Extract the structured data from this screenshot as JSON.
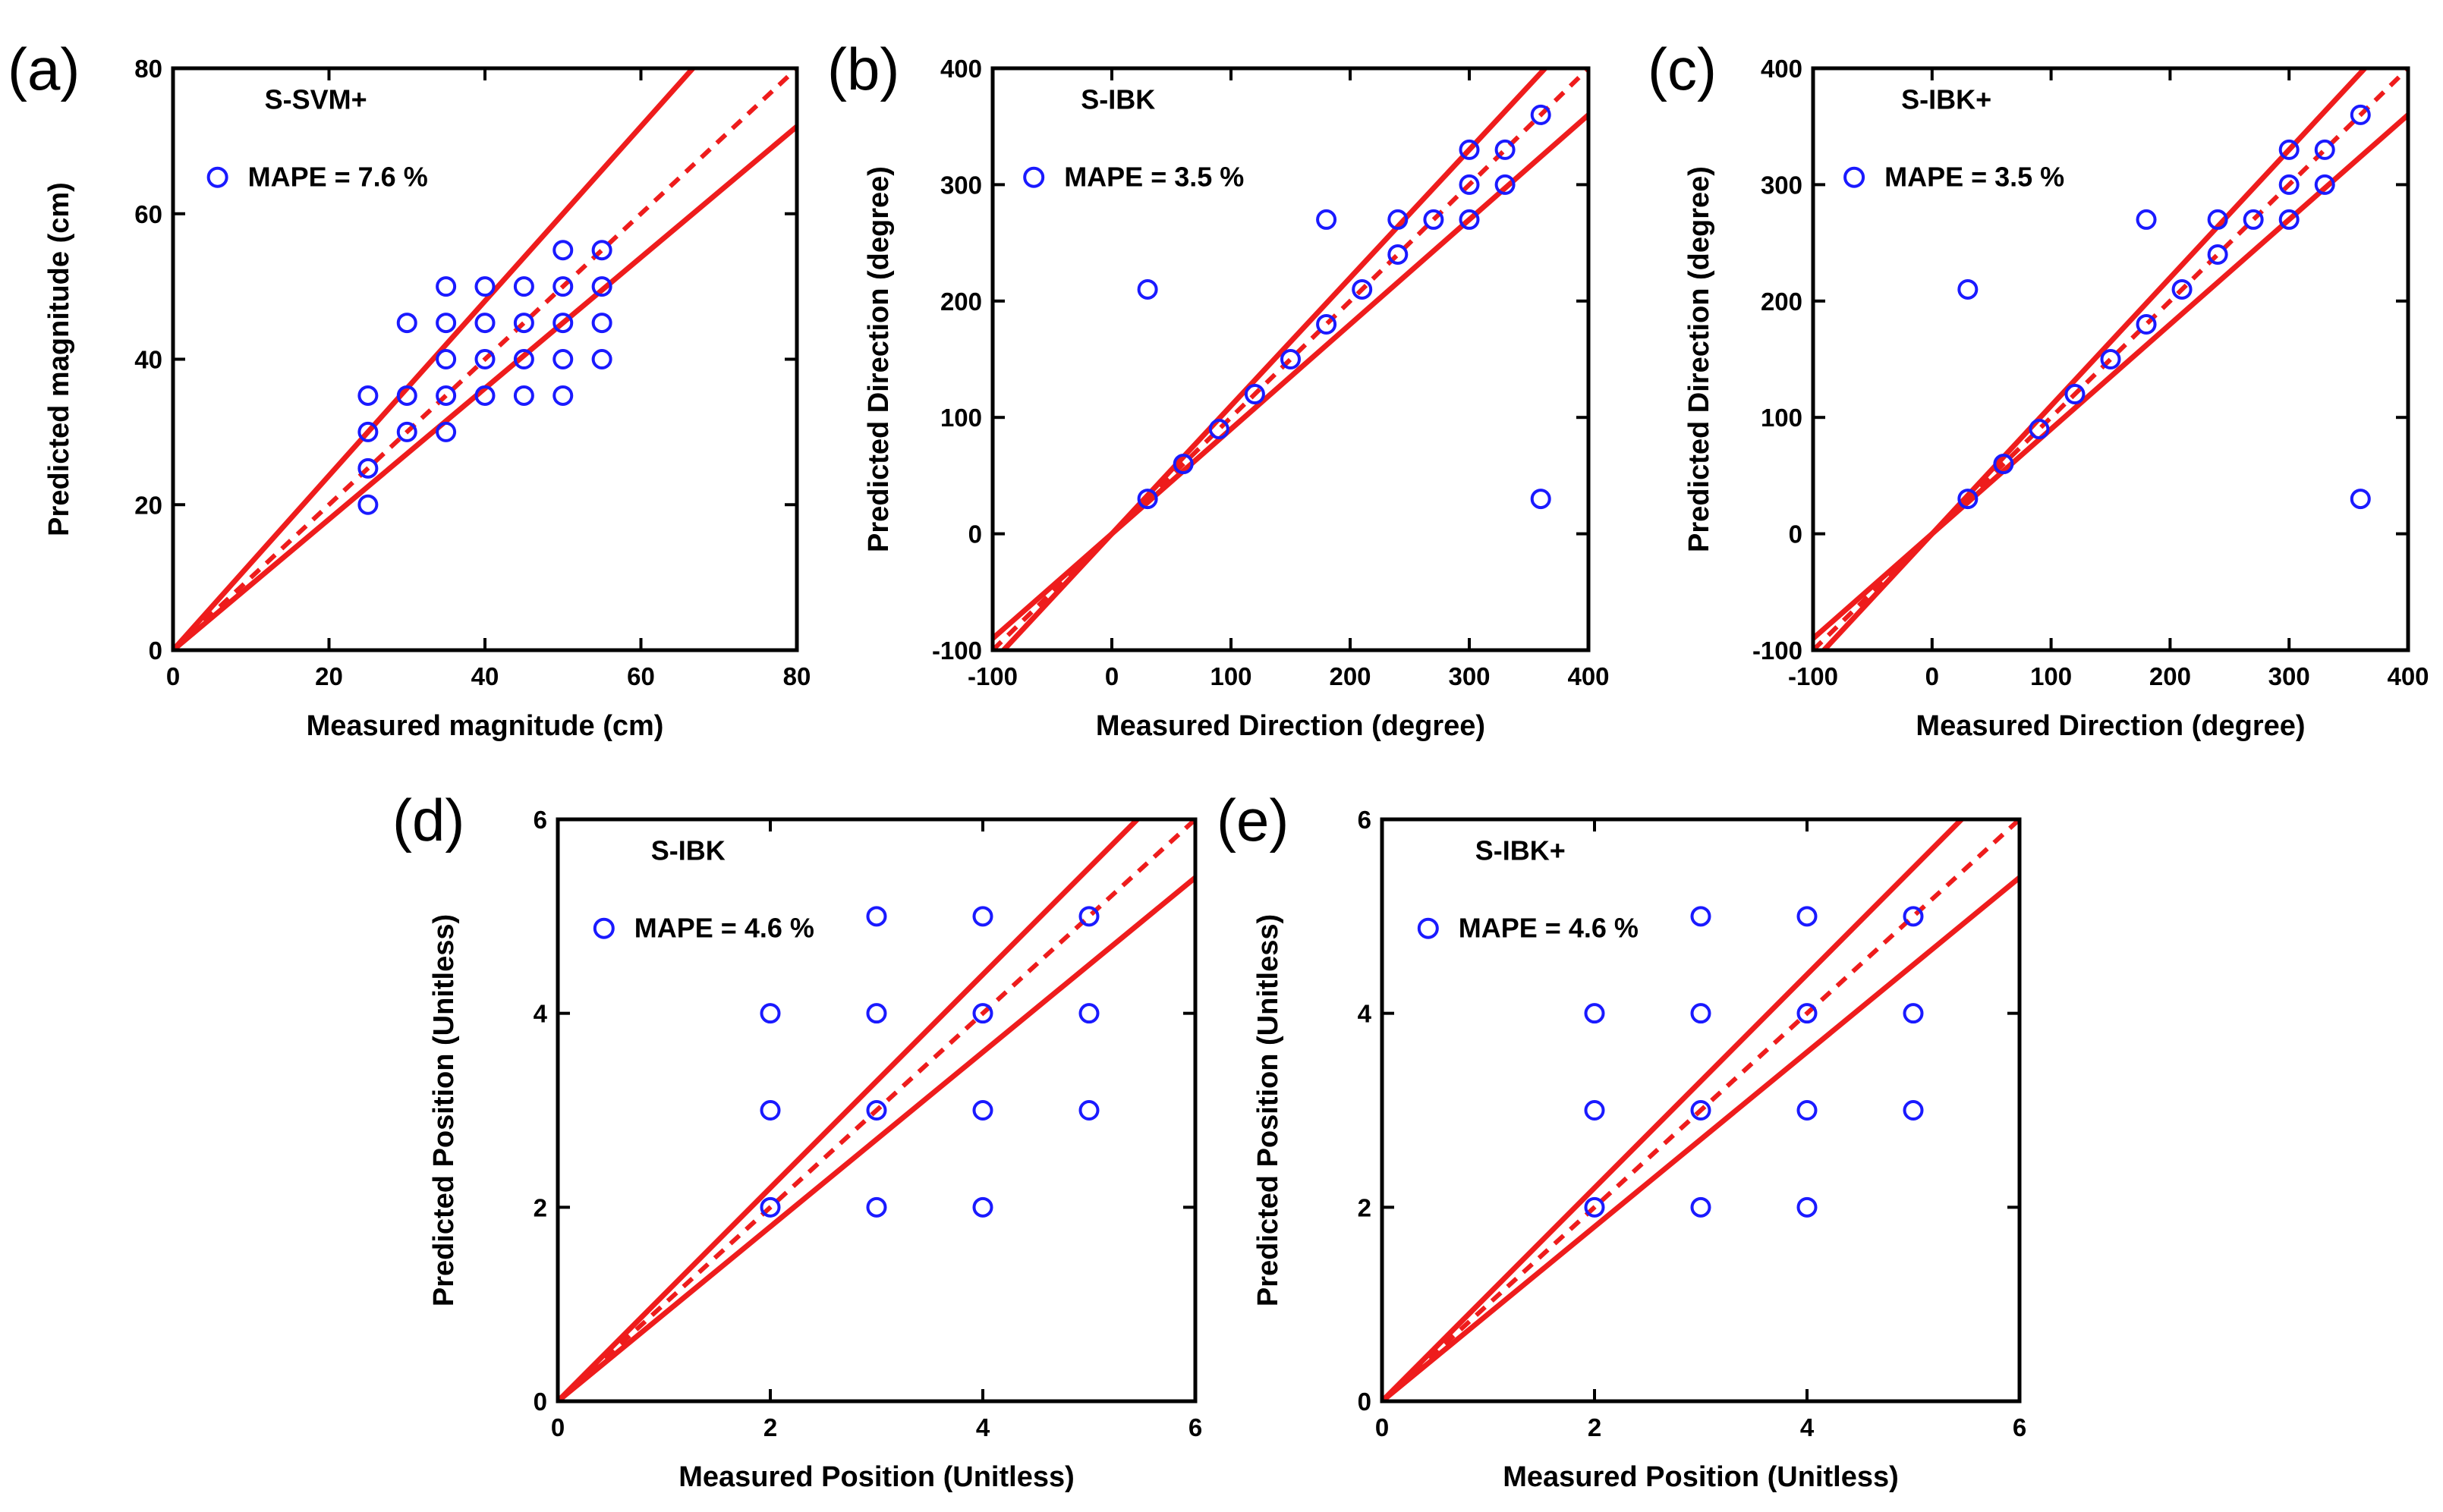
{
  "figure": {
    "colors": {
      "marker": "#1a1aff",
      "fit_line": "#ee1c1c",
      "axis": "#000000"
    },
    "icons": {
      "marker": "open-circle-icon"
    }
  },
  "chart_data": [
    {
      "type": "scatter",
      "panel_label": "(a)",
      "title": "S-SVM+",
      "legend": "MAPE = 7.6 %",
      "xlabel": "Measured magnitude (cm)",
      "ylabel": "Predicted magnitude (cm)",
      "xlim": [
        0,
        80
      ],
      "ylim": [
        0,
        80
      ],
      "xticks": [
        0,
        20,
        40,
        60,
        80
      ],
      "yticks": [
        0,
        20,
        40,
        60,
        80
      ],
      "reference_lines": {
        "identity": 1.0,
        "upper": 1.2,
        "lower": 0.9
      },
      "points": [
        [
          25,
          20
        ],
        [
          25,
          25
        ],
        [
          25,
          30
        ],
        [
          25,
          35
        ],
        [
          30,
          30
        ],
        [
          30,
          35
        ],
        [
          30,
          45
        ],
        [
          35,
          30
        ],
        [
          35,
          35
        ],
        [
          35,
          40
        ],
        [
          35,
          45
        ],
        [
          35,
          50
        ],
        [
          40,
          35
        ],
        [
          40,
          40
        ],
        [
          40,
          45
        ],
        [
          40,
          50
        ],
        [
          45,
          35
        ],
        [
          45,
          40
        ],
        [
          45,
          45
        ],
        [
          45,
          50
        ],
        [
          50,
          35
        ],
        [
          50,
          40
        ],
        [
          50,
          45
        ],
        [
          50,
          50
        ],
        [
          50,
          55
        ],
        [
          55,
          40
        ],
        [
          55,
          45
        ],
        [
          55,
          50
        ],
        [
          55,
          55
        ]
      ]
    },
    {
      "type": "scatter",
      "panel_label": "(b)",
      "title": "S-IBK",
      "legend": "MAPE = 3.5 %",
      "xlabel": "Measured Direction (degree)",
      "ylabel": "Predicted Direction (degree)",
      "xlim": [
        -100,
        400
      ],
      "ylim": [
        -100,
        400
      ],
      "xticks": [
        -100,
        0,
        100,
        200,
        300,
        400
      ],
      "yticks": [
        -100,
        0,
        100,
        200,
        300,
        400
      ],
      "reference_lines": {
        "identity": 1.0,
        "upper": 1.1,
        "lower": 0.9
      },
      "points": [
        [
          30,
          30
        ],
        [
          30,
          210
        ],
        [
          60,
          60
        ],
        [
          90,
          90
        ],
        [
          120,
          120
        ],
        [
          150,
          150
        ],
        [
          180,
          180
        ],
        [
          180,
          270
        ],
        [
          210,
          210
        ],
        [
          240,
          240
        ],
        [
          240,
          270
        ],
        [
          270,
          270
        ],
        [
          300,
          270
        ],
        [
          300,
          300
        ],
        [
          300,
          330
        ],
        [
          330,
          300
        ],
        [
          330,
          330
        ],
        [
          360,
          360
        ],
        [
          360,
          30
        ]
      ]
    },
    {
      "type": "scatter",
      "panel_label": "(c)",
      "title": "S-IBK+",
      "legend": "MAPE = 3.5 %",
      "xlabel": "Measured Direction (degree)",
      "ylabel": "Predicted Direction (degree)",
      "xlim": [
        -100,
        400
      ],
      "ylim": [
        -100,
        400
      ],
      "xticks": [
        -100,
        0,
        100,
        200,
        300,
        400
      ],
      "yticks": [
        -100,
        0,
        100,
        200,
        300,
        400
      ],
      "reference_lines": {
        "identity": 1.0,
        "upper": 1.1,
        "lower": 0.9
      },
      "points": [
        [
          30,
          30
        ],
        [
          30,
          210
        ],
        [
          60,
          60
        ],
        [
          90,
          90
        ],
        [
          120,
          120
        ],
        [
          150,
          150
        ],
        [
          180,
          180
        ],
        [
          180,
          270
        ],
        [
          210,
          210
        ],
        [
          240,
          240
        ],
        [
          240,
          270
        ],
        [
          270,
          270
        ],
        [
          300,
          270
        ],
        [
          300,
          300
        ],
        [
          300,
          330
        ],
        [
          330,
          300
        ],
        [
          330,
          330
        ],
        [
          360,
          360
        ],
        [
          360,
          30
        ]
      ]
    },
    {
      "type": "scatter",
      "panel_label": "(d)",
      "title": "S-IBK",
      "legend": "MAPE = 4.6 %",
      "xlabel": "Measured Position (Unitless)",
      "ylabel": "Predicted Position (Unitless)",
      "xlim": [
        0,
        6
      ],
      "ylim": [
        0,
        6
      ],
      "xticks": [
        0,
        2,
        4,
        6
      ],
      "yticks": [
        0,
        2,
        4,
        6
      ],
      "reference_lines": {
        "identity": 1.0,
        "upper": 1.1,
        "lower": 0.9
      },
      "points": [
        [
          2,
          2
        ],
        [
          2,
          3
        ],
        [
          2,
          4
        ],
        [
          3,
          2
        ],
        [
          3,
          3
        ],
        [
          3,
          4
        ],
        [
          3,
          5
        ],
        [
          4,
          2
        ],
        [
          4,
          3
        ],
        [
          4,
          4
        ],
        [
          4,
          5
        ],
        [
          5,
          3
        ],
        [
          5,
          4
        ],
        [
          5,
          5
        ]
      ]
    },
    {
      "type": "scatter",
      "panel_label": "(e)",
      "title": "S-IBK+",
      "legend": "MAPE = 4.6 %",
      "xlabel": "Measured Position (Unitless)",
      "ylabel": "Predicted Position (Unitless)",
      "xlim": [
        0,
        6
      ],
      "ylim": [
        0,
        6
      ],
      "xticks": [
        0,
        2,
        4,
        6
      ],
      "yticks": [
        0,
        2,
        4,
        6
      ],
      "reference_lines": {
        "identity": 1.0,
        "upper": 1.1,
        "lower": 0.9
      },
      "points": [
        [
          2,
          2
        ],
        [
          2,
          3
        ],
        [
          2,
          4
        ],
        [
          3,
          2
        ],
        [
          3,
          3
        ],
        [
          3,
          4
        ],
        [
          3,
          5
        ],
        [
          4,
          2
        ],
        [
          4,
          3
        ],
        [
          4,
          4
        ],
        [
          4,
          5
        ],
        [
          5,
          3
        ],
        [
          5,
          4
        ],
        [
          5,
          5
        ]
      ]
    }
  ]
}
